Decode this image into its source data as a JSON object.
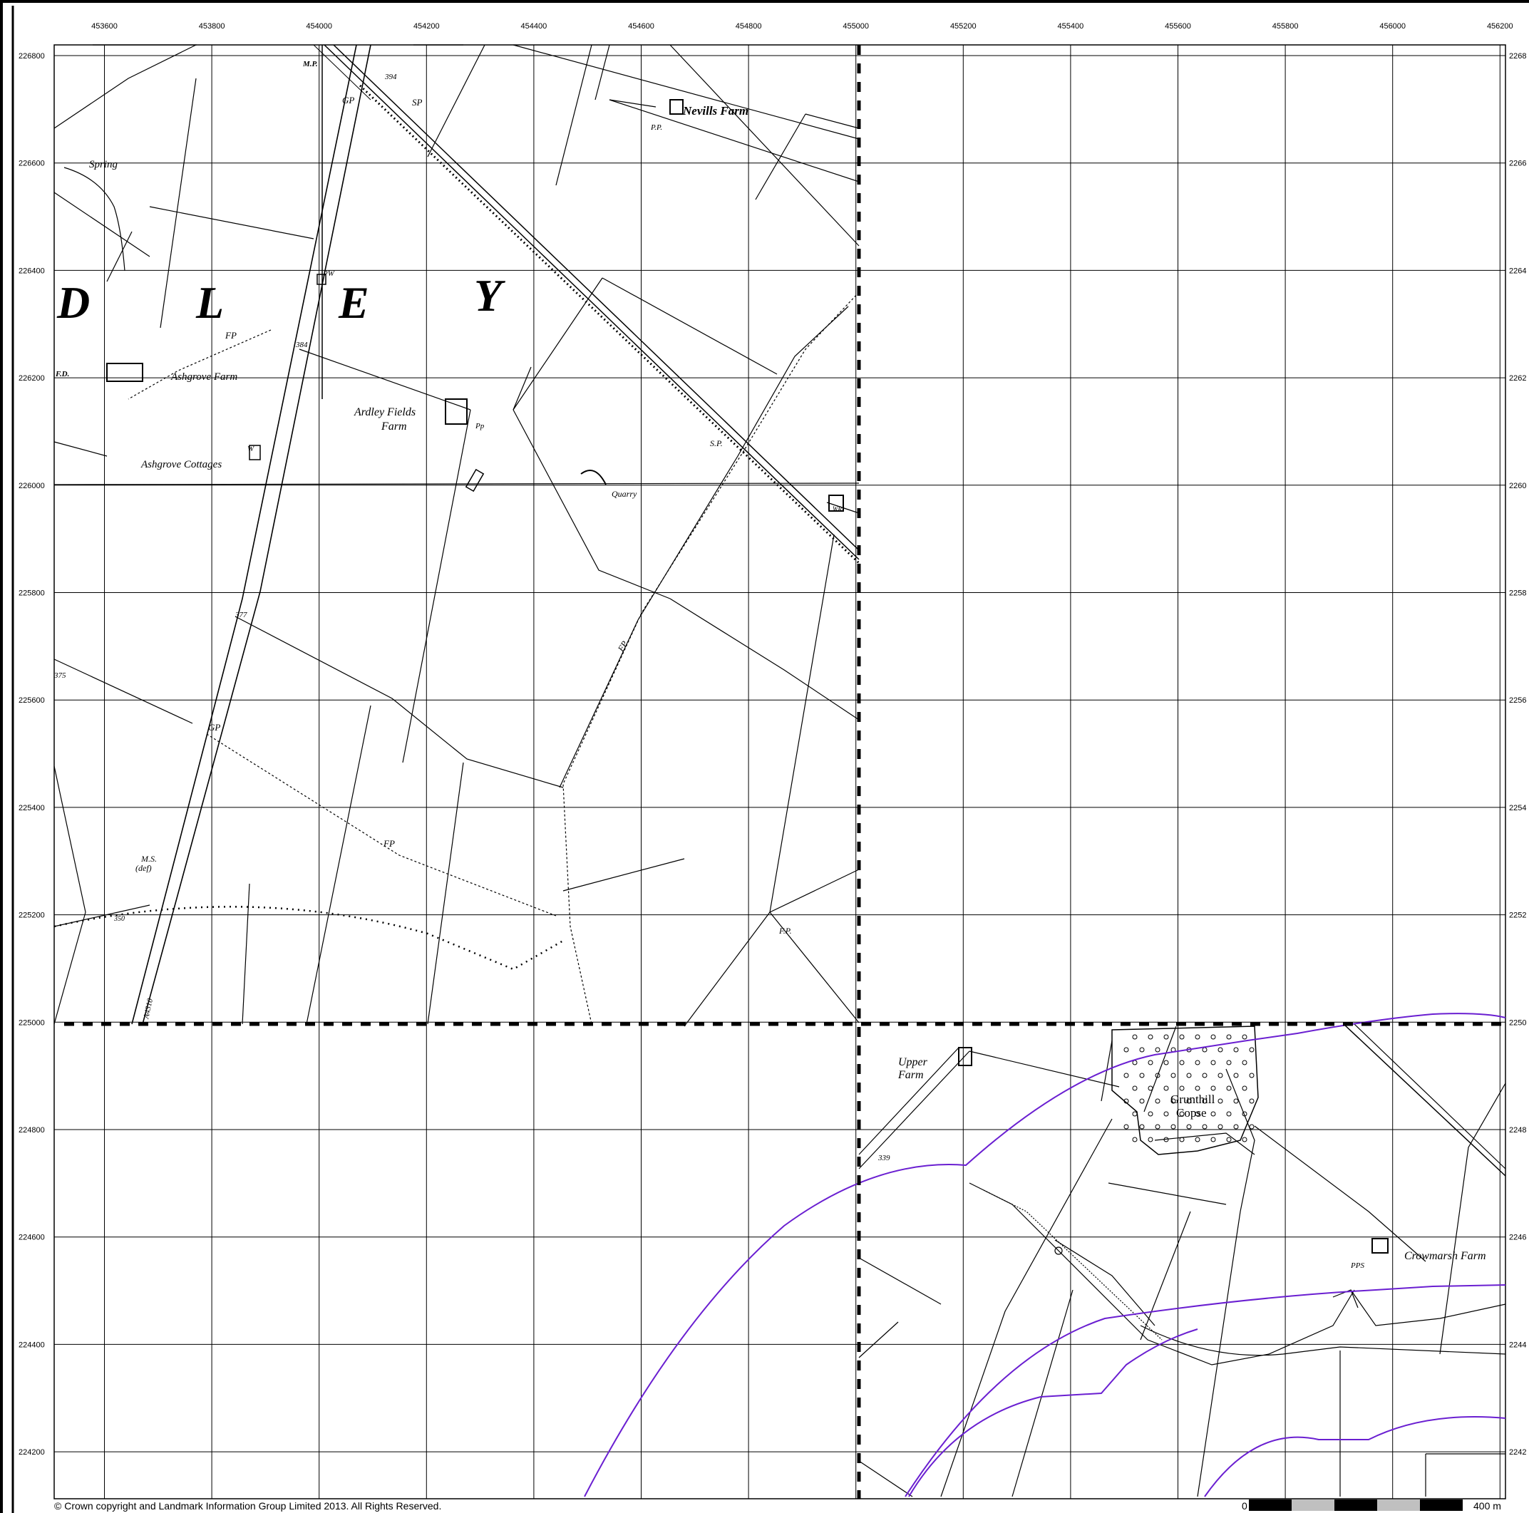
{
  "map": {
    "x_ticks": [
      "453600",
      "453800",
      "454000",
      "454200",
      "454400",
      "454600",
      "454800",
      "455000",
      "455200",
      "455400",
      "455600",
      "455800",
      "456000",
      "456200"
    ],
    "y_ticks": [
      "226800",
      "226600",
      "226400",
      "226200",
      "226000",
      "225800",
      "225600",
      "225400",
      "225200",
      "225000",
      "224800",
      "224600",
      "224400",
      "224200"
    ],
    "y_ticks_right": [
      "2268",
      "2266",
      "2264",
      "2262",
      "2260",
      "2258",
      "2256",
      "2254",
      "2252",
      "2250",
      "2248",
      "2246",
      "2244",
      "2242"
    ],
    "place_labels": {
      "nevills_farm": "Nevills Farm",
      "spring": "Spring",
      "ashgrove_farm": "Ashgrove Farm",
      "ashgrove_cottages": "Ashgrove Cottages",
      "ardley_fields_farm_1": "Ardley Fields",
      "ardley_fields_farm_2": "Farm",
      "quarry": "Quarry",
      "upper_farm_1": "Upper",
      "upper_farm_2": "Farm",
      "grunthill_copse_1": "Grunthill",
      "grunthill_copse_2": "Copse",
      "crowmarsh_farm": "Crowmarsh Farm"
    },
    "big_letters": [
      "D",
      "L",
      "E",
      "Y"
    ],
    "small_labels": {
      "mp": "M.P.",
      "gp_top": "GP",
      "sp_top": "SP",
      "pp_nevills": "P.P.",
      "fp_ashgrove": "FP",
      "fd": "F.D.",
      "bm_384": "384",
      "w_cott": "W",
      "pw": "PW",
      "pp_ardley": "Pp",
      "sp_rail": "S.P.",
      "wr": "WR",
      "fp_mid": "FP",
      "gp_mid": "GP",
      "bm_377": "377",
      "bm_375": "375",
      "fp_low": "FP",
      "ms_1": "M.S.",
      "ms_2": "(def)",
      "bm_350": "350",
      "road_a4310": "A4310",
      "fp_right": "F.P.",
      "bm_339": "339",
      "pps": "PPS",
      "bm_394": "394"
    },
    "colors": {
      "grid": "#000000",
      "boundary": "#000000",
      "purple_line": "#6a1fd1"
    }
  },
  "footer": {
    "copyright": "© Crown copyright and Landmark Information Group Limited 2013.  All Rights Reserved.",
    "scale_start": "0",
    "scale_end": "400 m"
  }
}
